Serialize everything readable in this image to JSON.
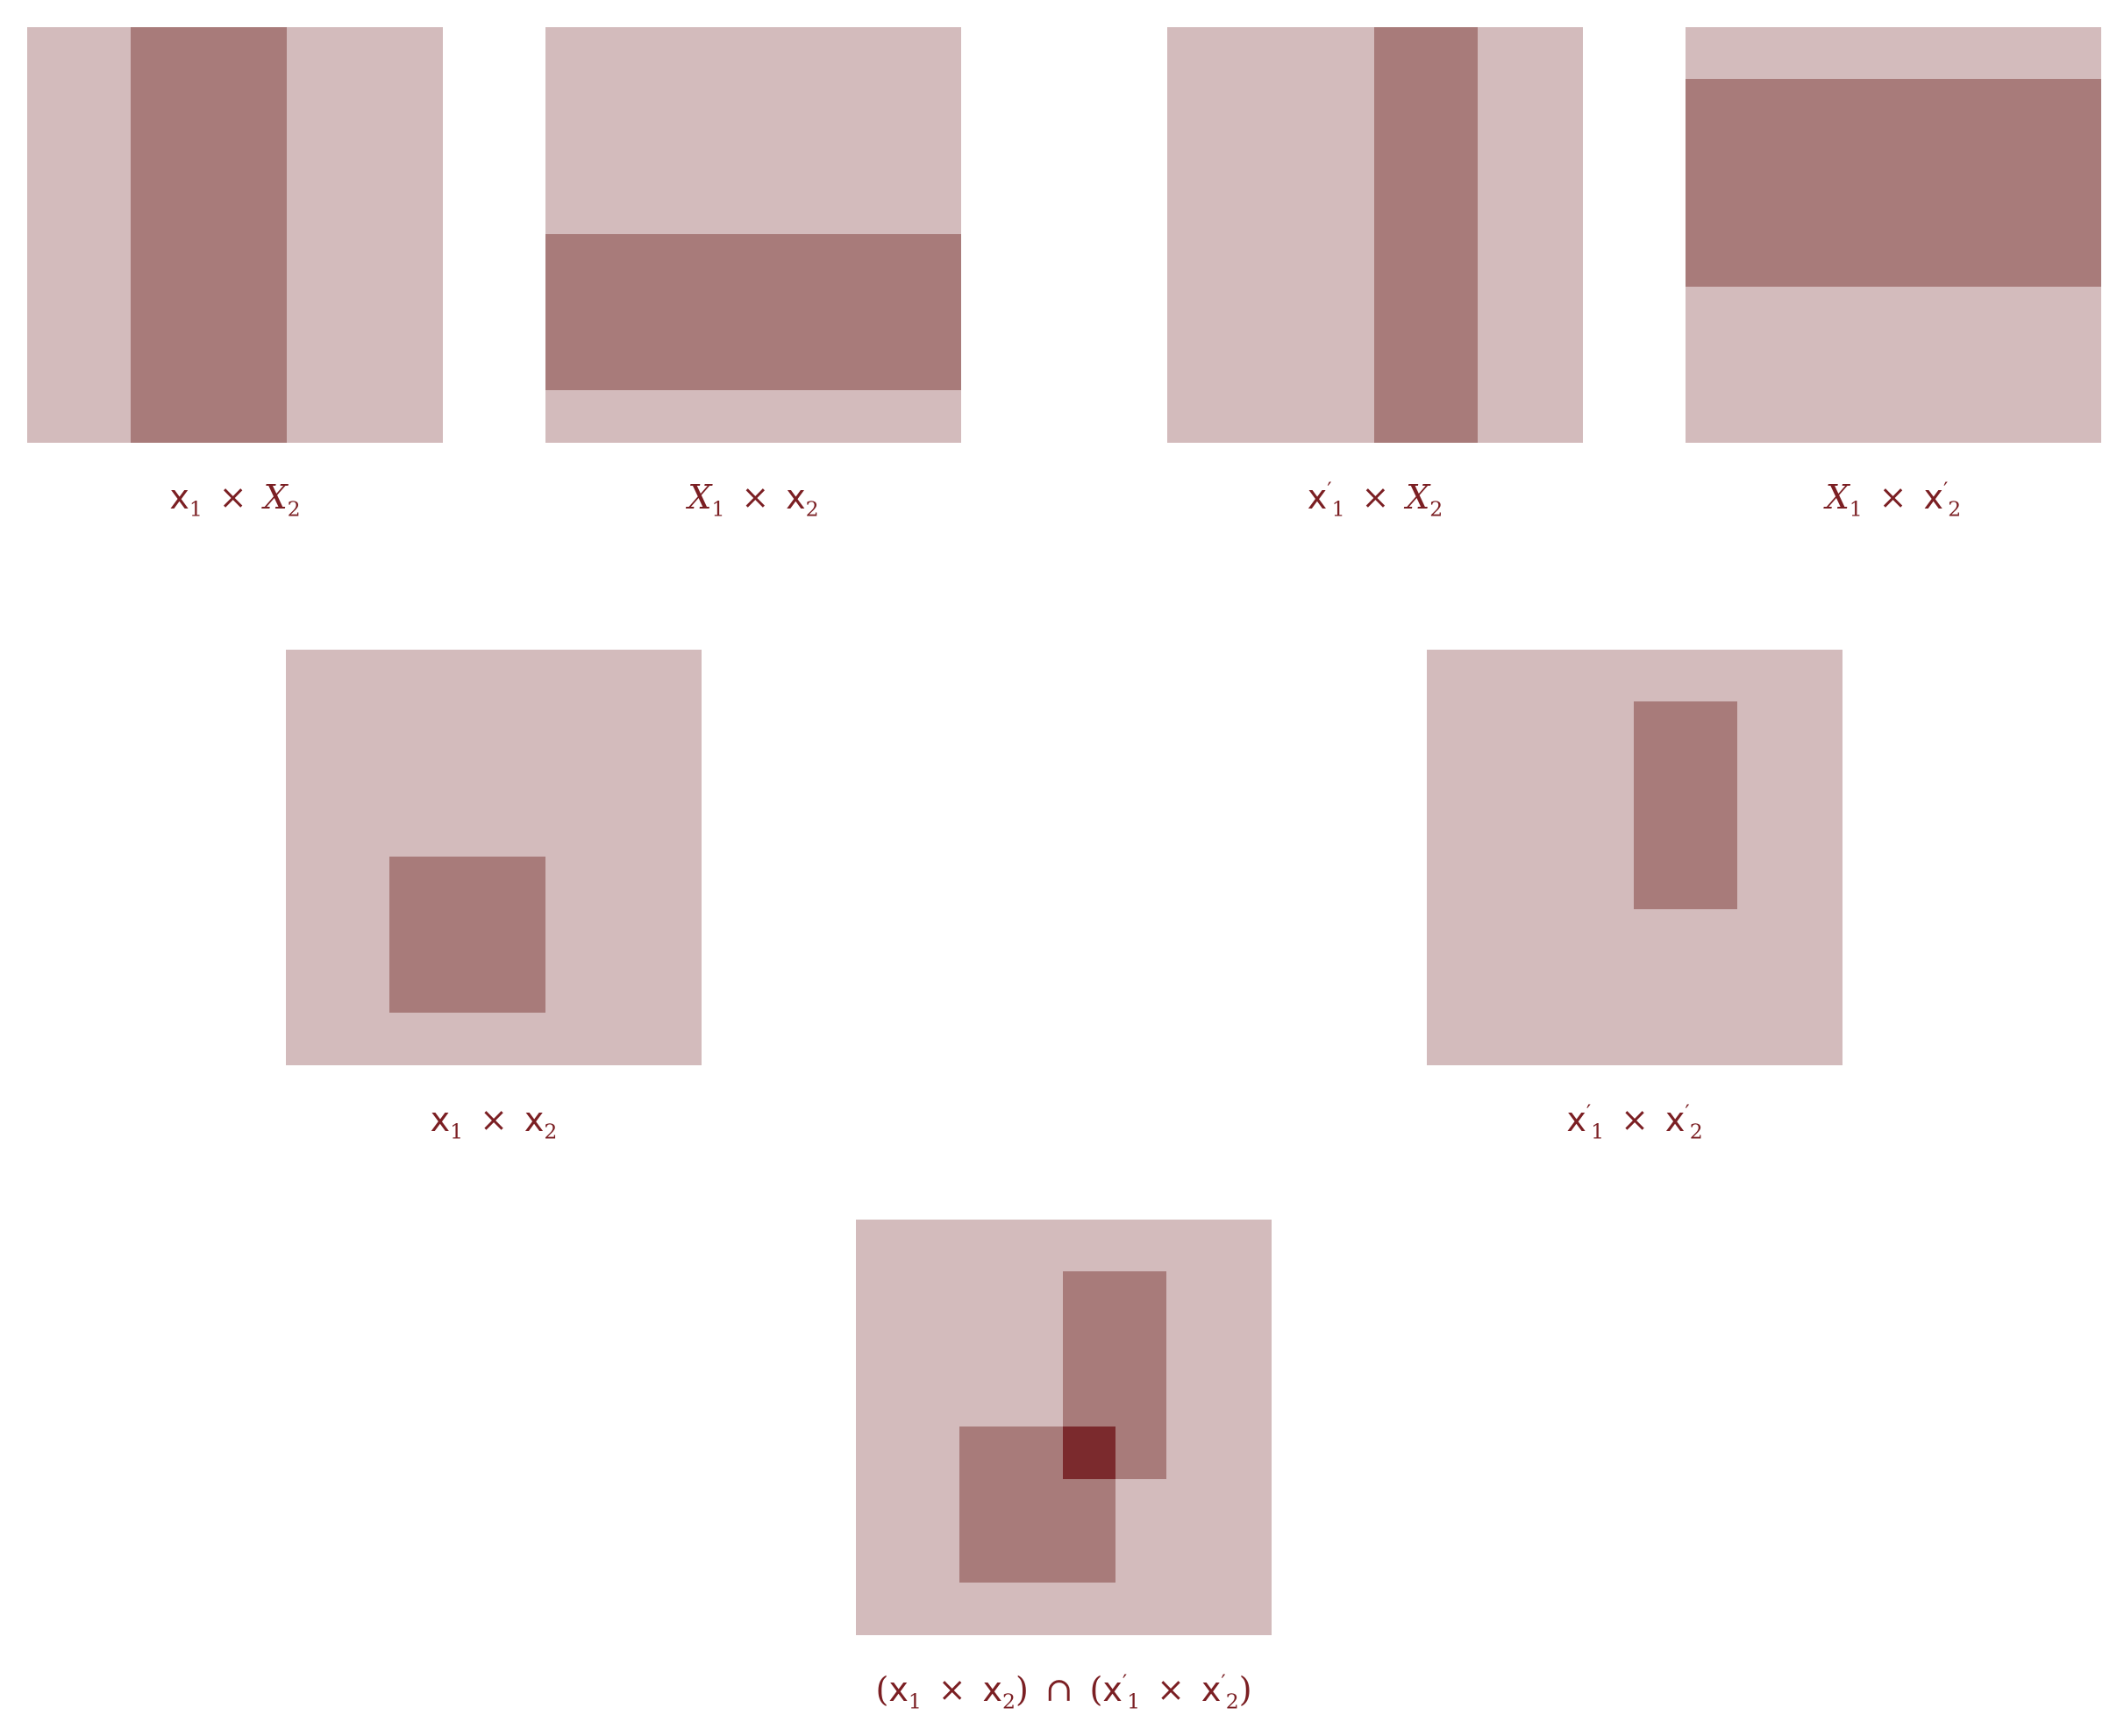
{
  "diagram": {
    "colors": {
      "background": "#ffffff",
      "panel": "#d3bbbc",
      "region": "#a87b7a",
      "overlap": "#7b2a2d",
      "caption": "#7b1f23"
    },
    "panels": [
      {
        "id": "p1",
        "caption": {
          "a": "x",
          "a_sub": "1",
          "op": "×",
          "b": "X",
          "b_sub": "2"
        }
      },
      {
        "id": "p2",
        "caption": {
          "a": "X",
          "a_sub": "1",
          "op": "×",
          "b": "x",
          "b_sub": "2"
        }
      },
      {
        "id": "p3",
        "caption": {
          "a": "x",
          "a_sup": "′",
          "a_sub": "1",
          "op": "×",
          "b": "X",
          "b_sub": "2"
        }
      },
      {
        "id": "p4",
        "caption": {
          "a": "X",
          "a_sub": "1",
          "op": "×",
          "b": "x",
          "b_sup": "′",
          "b_sub": "2"
        }
      },
      {
        "id": "p5",
        "caption": {
          "a": "x",
          "a_sub": "1",
          "op": "×",
          "b": "x",
          "b_sub": "2"
        }
      },
      {
        "id": "p6",
        "caption": {
          "a": "x",
          "a_sup": "′",
          "a_sub": "1",
          "op": "×",
          "b": "x",
          "b_sup": "′",
          "b_sub": "2"
        }
      },
      {
        "id": "p7",
        "caption": {
          "open1": "(",
          "a": "x",
          "a_sub": "1",
          "op1": "×",
          "b": "x",
          "b_sub": "2",
          "close1": ")",
          "cap": "∩",
          "open2": "(",
          "c": "x",
          "c_sup": "′",
          "c_sub": "1",
          "op2": "×",
          "d": "x",
          "d_sup": "′",
          "d_sub": "2",
          "close2": ")"
        }
      }
    ]
  }
}
